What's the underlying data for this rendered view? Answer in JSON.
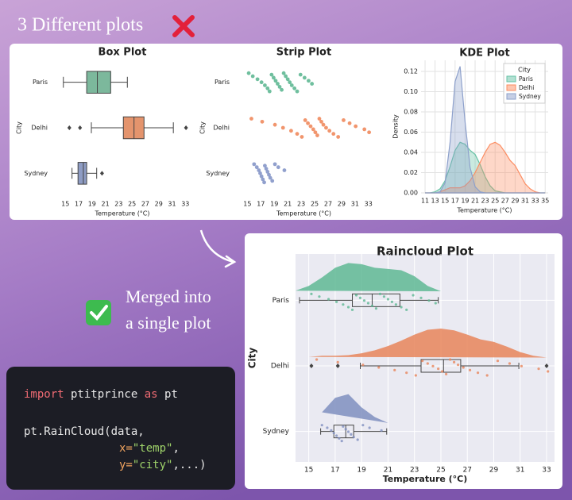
{
  "header": {
    "title": "3 Different plots"
  },
  "note": {
    "lines": [
      "Merged into",
      "a single plot"
    ]
  },
  "code": {
    "lines": [
      [
        "import",
        " ptitprince ",
        "as",
        " pt"
      ],
      [
        "pt.RainCloud(data,"
      ],
      [
        "x=",
        "\"temp\"",
        ","
      ],
      [
        "y=",
        "\"city\"",
        ",...)"
      ]
    ]
  },
  "chart_data": [
    {
      "type": "box",
      "title": "Box Plot",
      "x_label": "Temperature (°C)",
      "y_label": "City",
      "categories": [
        "Paris",
        "Delhi",
        "Sydney"
      ],
      "xlim": [
        13.3,
        33.8
      ],
      "xticks": [
        15,
        17,
        19,
        21,
        23,
        25,
        27,
        29,
        31,
        33
      ],
      "boxes": [
        {
          "color": "#7cb89c",
          "whislo": 14.7,
          "q1": 18.2,
          "med": 19.8,
          "q3": 21.8,
          "whishi": 24.3,
          "fliers": []
        },
        {
          "color": "#e4946d",
          "whislo": 18.9,
          "q1": 23.7,
          "med": 25.3,
          "q3": 26.8,
          "whishi": 31.2,
          "fliers": [
            15.6,
            17.2,
            33.1
          ]
        },
        {
          "color": "#8e9cc4",
          "whislo": 16.0,
          "q1": 16.9,
          "med": 17.7,
          "q3": 18.2,
          "whishi": 19.7,
          "fliers": [
            20.5
          ]
        }
      ]
    },
    {
      "type": "strip",
      "title": "Strip Plot",
      "x_label": "Temperature (°C)",
      "y_label": "City",
      "categories": [
        "Paris",
        "Delhi",
        "Sydney"
      ],
      "xlim": [
        13.3,
        33.5
      ],
      "xticks": [
        15,
        17,
        19,
        21,
        23,
        25,
        27,
        29,
        31,
        33
      ],
      "colors": [
        "#5fb894",
        "#f08a5d",
        "#8596c8"
      ],
      "points": [
        [
          15.2,
          15.8,
          16.5,
          17.1,
          17.6,
          18.0,
          18.3,
          18.6,
          18.9,
          19.2,
          19.5,
          19.8,
          20.1,
          20.4,
          20.7,
          21.0,
          21.3,
          21.6,
          22.0,
          22.4,
          22.9,
          23.5,
          24.1,
          24.6
        ],
        [
          15.6,
          17.2,
          19.1,
          20.3,
          21.5,
          22.4,
          23.1,
          23.6,
          24.0,
          24.4,
          24.8,
          25.1,
          25.4,
          25.7,
          26.0,
          26.3,
          26.7,
          27.2,
          27.8,
          28.5,
          29.3,
          30.2,
          31.1,
          32.4,
          33.1
        ],
        [
          16.0,
          16.4,
          16.7,
          16.9,
          17.1,
          17.3,
          17.5,
          17.6,
          17.8,
          18.0,
          18.2,
          18.4,
          18.7,
          19.1,
          19.6,
          20.5
        ]
      ]
    },
    {
      "type": "kde",
      "title": "KDE Plot",
      "x_label": "Temperature (°C)",
      "y_label": "Density",
      "xlim": [
        10.2,
        35.6
      ],
      "xticks": [
        11,
        13,
        15,
        17,
        19,
        21,
        23,
        25,
        27,
        29,
        31,
        33,
        35
      ],
      "ylim": [
        0,
        0.131
      ],
      "yticks": [
        {
          "value": 0,
          "label": "0.00"
        },
        {
          "value": 0.02,
          "label": "0.02"
        },
        {
          "value": 0.04,
          "label": "0.04"
        },
        {
          "value": 0.06,
          "label": "0.06"
        },
        {
          "value": 0.08,
          "label": "0.08"
        },
        {
          "value": 0.1,
          "label": "0.10"
        },
        {
          "value": 0.12,
          "label": "0.12"
        }
      ],
      "grid": true,
      "legend_title": "City",
      "legend": "upper right",
      "x": [
        11,
        12,
        13,
        14,
        15,
        16,
        17,
        18,
        19,
        20,
        21,
        22,
        23,
        24,
        25,
        26,
        27,
        28,
        29,
        30,
        31,
        32,
        33,
        34,
        35
      ],
      "series": [
        {
          "name": "Paris",
          "color": "#66c2a5",
          "values": [
            0,
            0,
            0.001,
            0.004,
            0.012,
            0.026,
            0.042,
            0.05,
            0.048,
            0.042,
            0.038,
            0.028,
            0.016,
            0.007,
            0.002,
            0.001,
            0,
            0,
            0,
            0,
            0,
            0,
            0,
            0,
            0
          ]
        },
        {
          "name": "Delhi",
          "color": "#fc8d62",
          "values": [
            0,
            0,
            0,
            0.001,
            0.003,
            0.005,
            0.005,
            0.005,
            0.007,
            0.012,
            0.02,
            0.03,
            0.04,
            0.048,
            0.05,
            0.047,
            0.04,
            0.032,
            0.027,
            0.018,
            0.009,
            0.004,
            0.001,
            0,
            0
          ]
        },
        {
          "name": "Sydney",
          "color": "#8da0cb",
          "values": [
            0,
            0,
            0,
            0.001,
            0.01,
            0.05,
            0.11,
            0.125,
            0.07,
            0.025,
            0.006,
            0.001,
            0,
            0,
            0,
            0,
            0,
            0,
            0,
            0,
            0,
            0,
            0,
            0,
            0
          ]
        }
      ]
    },
    {
      "type": "raincloud",
      "title": "Raincloud Plot",
      "x_label": "Temperature (°C)",
      "y_label": "City",
      "categories": [
        "Paris",
        "Delhi",
        "Sydney"
      ],
      "xlim": [
        14,
        33.6
      ],
      "xticks": [
        15,
        17,
        19,
        21,
        23,
        25,
        27,
        29,
        31,
        33
      ],
      "grid": true,
      "background": "#eaeaf2",
      "x": [
        14,
        15,
        16,
        17,
        18,
        19,
        20,
        21,
        22,
        23,
        24,
        25,
        26,
        27,
        28,
        29,
        30,
        31,
        32,
        33
      ],
      "clouds": [
        {
          "color": "#5fb894",
          "values": [
            0.004,
            0.012,
            0.026,
            0.042,
            0.05,
            0.048,
            0.042,
            0.04,
            0.038,
            0.028,
            0.012,
            0.003,
            null,
            null,
            null,
            null,
            null,
            null,
            null,
            null
          ]
        },
        {
          "color": "#e8855a",
          "values": [
            null,
            0.003,
            0.005,
            0.005,
            0.006,
            0.009,
            0.014,
            0.021,
            0.03,
            0.04,
            0.048,
            0.05,
            0.047,
            0.04,
            0.032,
            0.028,
            0.02,
            0.011,
            0.005,
            0.002
          ]
        },
        {
          "color": "#7f8fbf",
          "values": [
            null,
            null,
            0.05,
            0.11,
            0.125,
            0.07,
            0.03,
            0.006,
            null,
            null,
            null,
            null,
            null,
            null,
            null,
            null,
            null,
            null,
            null,
            null
          ]
        }
      ],
      "boxes": [
        {
          "whislo": 14.3,
          "q1": 18.3,
          "med": 19.8,
          "q3": 21.9,
          "whishi": 24.8,
          "fliers": []
        },
        {
          "whislo": 18.9,
          "q1": 23.5,
          "med": 25.2,
          "q3": 26.5,
          "whishi": 30.9,
          "fliers": [
            15.2,
            17.2,
            33.0
          ]
        },
        {
          "whislo": 15.9,
          "q1": 16.9,
          "med": 17.8,
          "q3": 18.4,
          "whishi": 20.9,
          "fliers": []
        }
      ],
      "points": [
        [
          15.2,
          15.8,
          16.5,
          17.1,
          17.6,
          18.0,
          18.3,
          18.6,
          18.9,
          19.2,
          19.5,
          19.8,
          20.1,
          20.4,
          20.7,
          21.0,
          21.3,
          21.6,
          22.0,
          22.4,
          22.9,
          23.5,
          24.1,
          24.6
        ],
        [
          15.6,
          17.2,
          19.1,
          20.3,
          21.5,
          22.4,
          23.1,
          23.6,
          24.0,
          24.4,
          24.8,
          25.1,
          25.4,
          25.7,
          26.0,
          26.3,
          26.7,
          27.2,
          27.8,
          28.5,
          29.3,
          30.2,
          31.1,
          32.4,
          33.1
        ],
        [
          16.0,
          16.4,
          16.7,
          16.9,
          17.1,
          17.3,
          17.5,
          17.6,
          17.8,
          18.0,
          18.2,
          18.4,
          18.7,
          19.1,
          19.6,
          20.5
        ]
      ]
    }
  ]
}
